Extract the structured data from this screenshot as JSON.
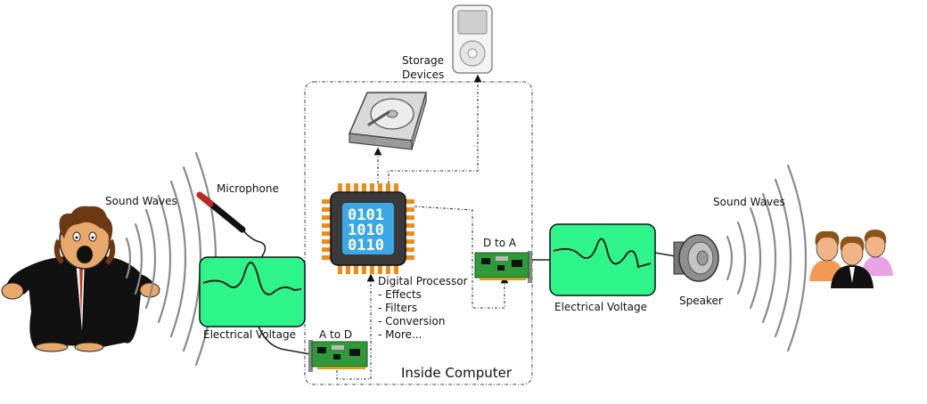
{
  "labels": {
    "sound_waves_left": "Sound Waves",
    "microphone": "Microphone",
    "electrical_voltage_left": "Electrical Voltage",
    "a_to_d": "A to D",
    "storage_line1": "Storage",
    "storage_line2": "Devices",
    "digital_processor": "Digital Processor",
    "processor_items": [
      "- Effects",
      "- Filters",
      "- Conversion",
      "- More..."
    ],
    "inside_computer": "Inside Computer",
    "d_to_a": "D to A",
    "electrical_voltage_right": "Electrical Voltage",
    "speaker": "Speaker",
    "sound_waves_right": "Sound Waves"
  },
  "chip": {
    "rows": [
      "0101",
      "1010",
      "0110"
    ]
  },
  "colors": {
    "scope_fill": "#2ef58a",
    "chip_body": "#3a3a3a",
    "chip_pins": "#f08a18",
    "chip_screen": "#3aa7e6",
    "board_green": "#2f9a3a"
  }
}
